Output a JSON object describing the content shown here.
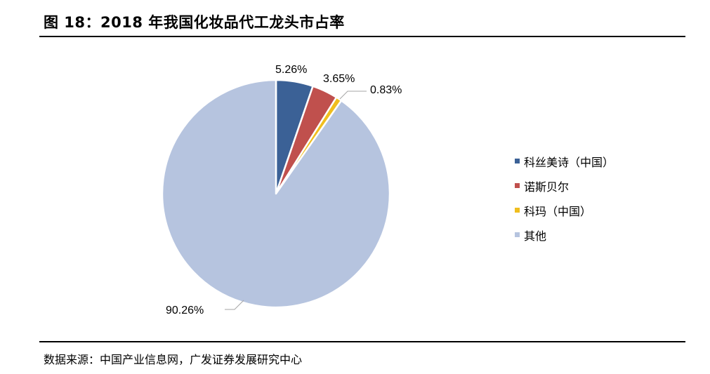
{
  "figure_title": "图 18：2018 年我国化妆品代工龙头市占率",
  "source_note": "数据来源：中国产业信息网，广发证券发展研究中心",
  "chart_data": {
    "type": "pie",
    "title": "",
    "legend_position": "right",
    "slices": [
      {
        "name": "科丝美诗（中国）",
        "value": 5.26,
        "label": "5.26%",
        "color": "#3b6196"
      },
      {
        "name": "诺斯贝尔",
        "value": 3.65,
        "label": "3.65%",
        "color": "#c0504d"
      },
      {
        "name": "科玛（中国）",
        "value": 0.83,
        "label": "0.83%",
        "color": "#f0be1e"
      },
      {
        "name": "其他",
        "value": 90.26,
        "label": "90.26%",
        "color": "#b6c4df"
      }
    ]
  }
}
